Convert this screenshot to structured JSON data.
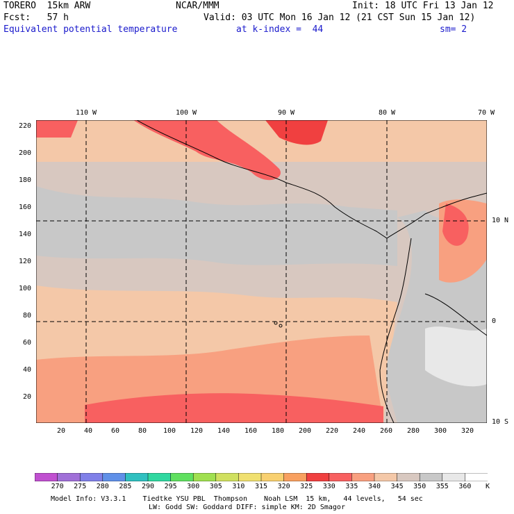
{
  "header": {
    "model": "TORERO  15km ARW",
    "center": "NCAR/MMM",
    "init": "Init: 18 UTC Fri 13 Jan 12",
    "fcst": "Fcst:   57 h",
    "valid": "Valid: 03 UTC Mon 16 Jan 12 (21 CST Sun 15 Jan 12)",
    "field": "Equivalent potential temperature",
    "level": "at k-index =  44",
    "smooth": "sm= 2"
  },
  "axes": {
    "y_ticks": [
      "220",
      "200",
      "180",
      "160",
      "140",
      "120",
      "100",
      "80",
      "60",
      "40",
      "20"
    ],
    "x_ticks": [
      "20",
      "40",
      "60",
      "80",
      "100",
      "120",
      "140",
      "160",
      "180",
      "200",
      "220",
      "240",
      "260",
      "280",
      "300",
      "320"
    ],
    "lon_labels": [
      "110 W",
      "100 W",
      "90 W",
      "80 W",
      "70 W"
    ],
    "lat_labels": [
      "10 N",
      "0",
      "10 S"
    ]
  },
  "colorbar": {
    "unit": "K",
    "levels": [
      "270",
      "275",
      "280",
      "285",
      "290",
      "295",
      "300",
      "305",
      "310",
      "315",
      "320",
      "325",
      "330",
      "335",
      "340",
      "345",
      "350",
      "355",
      "360"
    ],
    "colors": [
      "#c050d0",
      "#a070d8",
      "#8080e8",
      "#6090e8",
      "#30c0c0",
      "#30d8a0",
      "#60e060",
      "#a0e050",
      "#d0e060",
      "#f0e070",
      "#f8d070",
      "#f8a060",
      "#f04040",
      "#f86060",
      "#f8a080",
      "#f4c8a8",
      "#d8c8c0",
      "#c8c8c8",
      "#e8e8e8",
      "#ffffff"
    ]
  },
  "footer": {
    "line1": "Model Info: V3.3.1    Tiedtke YSU PBL  Thompson    Noah LSM  15 km,   44 levels,   54 sec",
    "line2": "LW: Godd SW: Goddard DIFF: simple KM: 2D Smagor"
  }
}
